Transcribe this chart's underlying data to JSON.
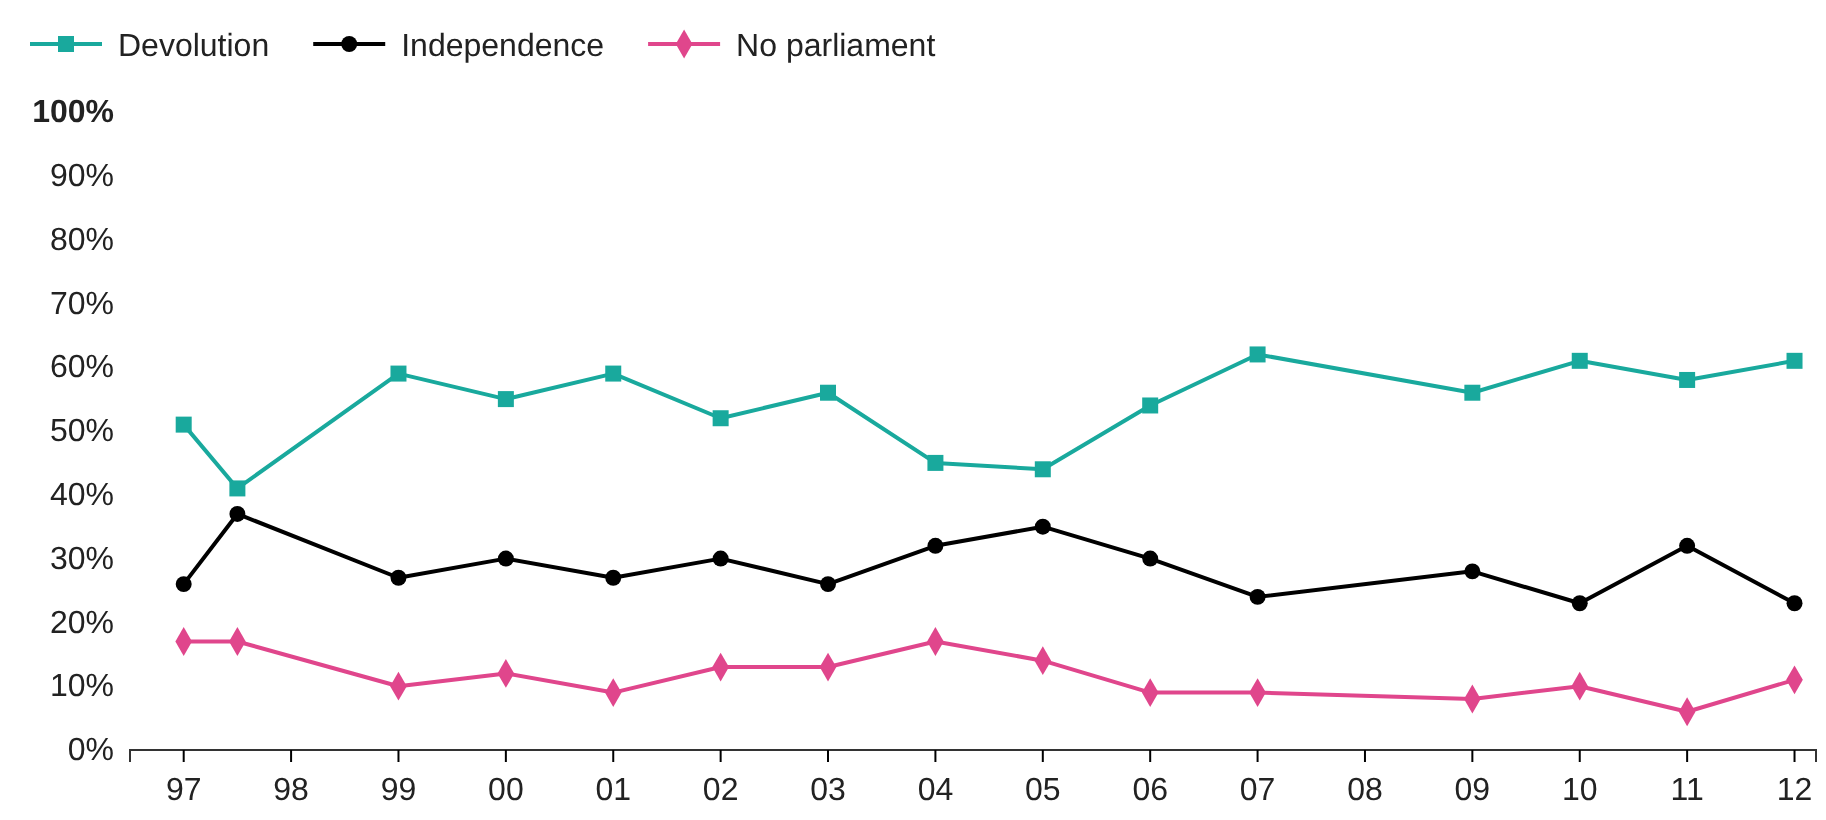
{
  "chart_data": {
    "type": "line",
    "x": [
      1997,
      1997.5,
      1999,
      2000,
      2001,
      2002,
      2003,
      2004,
      2005,
      2006,
      2007,
      2009,
      2010,
      2011,
      2012
    ],
    "series": [
      {
        "name": "Devolution",
        "color": "#19a99d",
        "marker": "square",
        "values": [
          51,
          41,
          59,
          55,
          59,
          52,
          56,
          45,
          44,
          54,
          62,
          56,
          61,
          58,
          61
        ]
      },
      {
        "name": "Independence",
        "color": "#000000",
        "marker": "circle",
        "values": [
          26,
          37,
          27,
          30,
          27,
          30,
          26,
          32,
          35,
          30,
          24,
          28,
          23,
          32,
          23
        ]
      },
      {
        "name": "No parliament",
        "color": "#e0468c",
        "marker": "diamond",
        "values": [
          17,
          17,
          10,
          12,
          9,
          13,
          13,
          17,
          14,
          9,
          9,
          8,
          10,
          6,
          11
        ]
      }
    ],
    "xlim": [
      1996.5,
      2012.2
    ],
    "xticks": [
      {
        "value": 1997,
        "label": "97"
      },
      {
        "value": 1998,
        "label": "98"
      },
      {
        "value": 1999,
        "label": "99"
      },
      {
        "value": 2000,
        "label": "00"
      },
      {
        "value": 2001,
        "label": "01"
      },
      {
        "value": 2002,
        "label": "02"
      },
      {
        "value": 2003,
        "label": "03"
      },
      {
        "value": 2004,
        "label": "04"
      },
      {
        "value": 2005,
        "label": "05"
      },
      {
        "value": 2006,
        "label": "06"
      },
      {
        "value": 2007,
        "label": "07"
      },
      {
        "value": 2008,
        "label": "08"
      },
      {
        "value": 2009,
        "label": "09"
      },
      {
        "value": 2010,
        "label": "10"
      },
      {
        "value": 2011,
        "label": "11"
      },
      {
        "value": 2012,
        "label": "12"
      }
    ],
    "ylim": [
      0,
      100
    ],
    "yticks": [
      {
        "value": 0,
        "label": "0%"
      },
      {
        "value": 10,
        "label": "10%"
      },
      {
        "value": 20,
        "label": "20%"
      },
      {
        "value": 30,
        "label": "30%"
      },
      {
        "value": 40,
        "label": "40%"
      },
      {
        "value": 50,
        "label": "50%"
      },
      {
        "value": 60,
        "label": "60%"
      },
      {
        "value": 70,
        "label": "70%"
      },
      {
        "value": 80,
        "label": "80%"
      },
      {
        "value": 90,
        "label": "90%"
      },
      {
        "value": 100,
        "label": "100%"
      }
    ],
    "legend": "top left",
    "grid": false,
    "line_style": "solid"
  }
}
